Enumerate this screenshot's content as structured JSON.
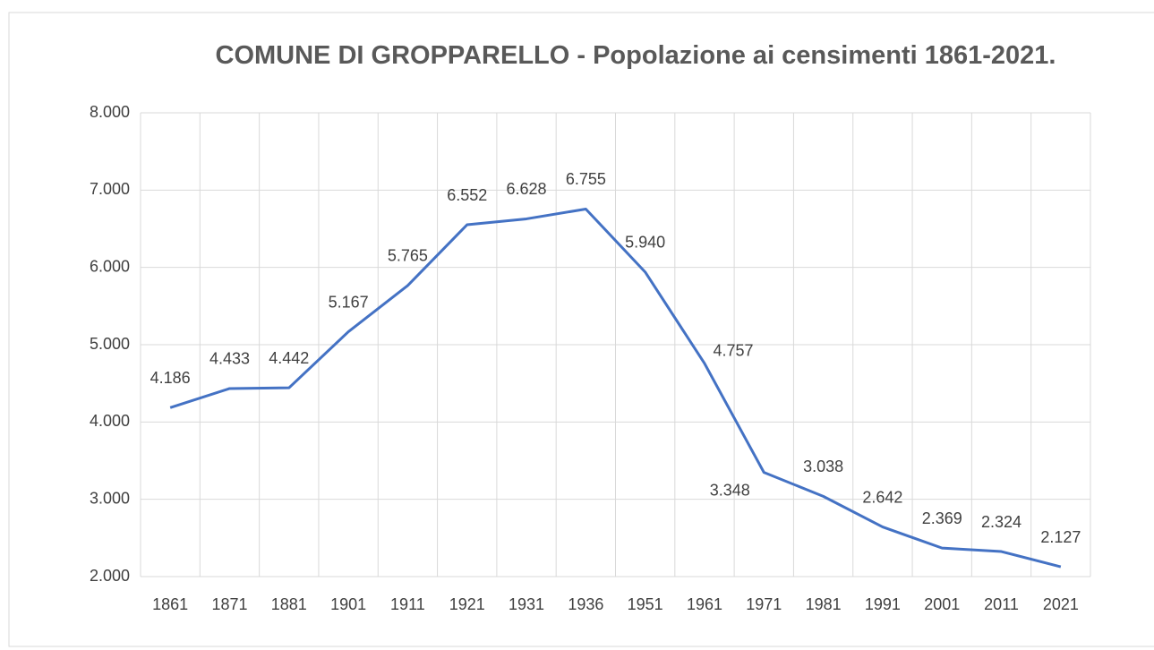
{
  "chart_data": {
    "type": "line",
    "title": "COMUNE DI GROPPARELLO - Popolazione ai censimenti 1861-2021.",
    "categories": [
      "1861",
      "1871",
      "1881",
      "1901",
      "1911",
      "1921",
      "1931",
      "1936",
      "1951",
      "1961",
      "1971",
      "1981",
      "1991",
      "2001",
      "2011",
      "2021"
    ],
    "series": [
      {
        "name": "Popolazione",
        "color": "#4472c4",
        "values": [
          4186,
          4433,
          4442,
          5167,
          5765,
          6552,
          6628,
          6755,
          5940,
          4757,
          3348,
          3038,
          2642,
          2369,
          2324,
          2127
        ],
        "value_labels": [
          "4.186",
          "4.433",
          "4.442",
          "5.167",
          "5.765",
          "6.552",
          "6.628",
          "6.755",
          "5.940",
          "4.757",
          "3.348",
          "3.038",
          "2.642",
          "2.369",
          "2.324",
          "2.127"
        ]
      }
    ],
    "ylim": [
      2000,
      8000
    ],
    "yticks": [
      {
        "value": 2000,
        "label": "2.000"
      },
      {
        "value": 3000,
        "label": "3.000"
      },
      {
        "value": 4000,
        "label": "4.000"
      },
      {
        "value": 5000,
        "label": "5.000"
      },
      {
        "value": 6000,
        "label": "6.000"
      },
      {
        "value": 7000,
        "label": "7.000"
      },
      {
        "value": 8000,
        "label": "8.000"
      }
    ],
    "grid": true
  }
}
